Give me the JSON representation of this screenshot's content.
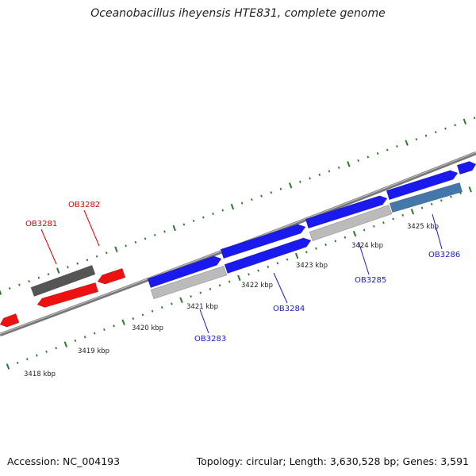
{
  "header": {
    "title": "Oceanobacillus iheyensis HTE831, complete genome"
  },
  "footer": {
    "accession": "Accession: NC_004193",
    "summary": "Topology: circular; Length: 3,630,528 bp; Genes: 3,591"
  },
  "colors": {
    "forward_gene": "#1a1aee",
    "reverse_gene": "#ee1111",
    "pseudo_gene": "#555555",
    "selected_gene": "#4477aa",
    "other_gene": "#bbbbbb",
    "ruler_ticks": "#2a7a2a",
    "backbone": "#777777",
    "label_blue": "#1a1ad0",
    "label_red": "#dd0000"
  },
  "ruler": {
    "labels": [
      "3418 kbp",
      "3419 kbp",
      "3420 kbp",
      "3421 kbp",
      "3422 kbp",
      "3423 kbp",
      "3424 kbp",
      "3425 kbp"
    ]
  },
  "genes": [
    {
      "name": "OB3281",
      "label_color": "red"
    },
    {
      "name": "OB3282",
      "label_color": "red"
    },
    {
      "name": "OB3283",
      "label_color": "blue"
    },
    {
      "name": "OB3284",
      "label_color": "blue"
    },
    {
      "name": "OB3285",
      "label_color": "blue"
    },
    {
      "name": "OB3286",
      "label_color": "blue"
    }
  ]
}
